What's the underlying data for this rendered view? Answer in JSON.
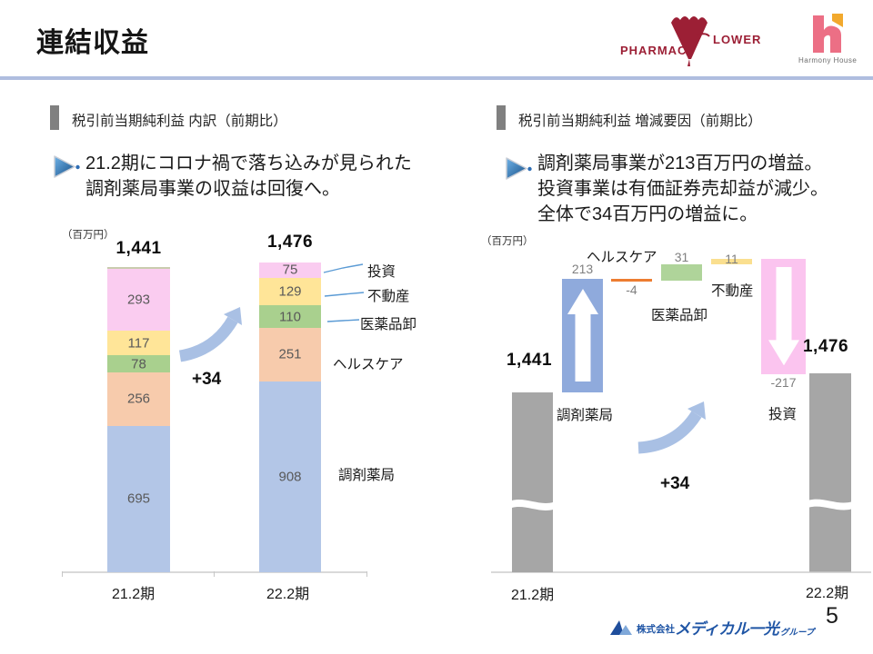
{
  "page": {
    "title": "連結収益",
    "page_number": "5"
  },
  "logos": {
    "pharmacy_flower": {
      "text_left": "PHARMAC",
      "text_right": "LOWER",
      "color": "#9C1F35"
    },
    "harmony_house": {
      "caption": "Harmony House",
      "pink": "#EC6F85",
      "orange": "#F2A92D"
    },
    "footer_company": {
      "prefix": "株式会社",
      "name": "メディカル一光",
      "suffix": "グループ",
      "color": "#1F55A5"
    }
  },
  "left_panel": {
    "header": "税引前当期純利益 内訳（前期比）",
    "bullet_lines": [
      "21.2期にコロナ禍で落ち込みが見られた",
      "調剤薬局事業の収益は回復へ。"
    ],
    "unit": "（百万円）",
    "delta_label": "+34"
  },
  "right_panel": {
    "header": "税引前当期純利益 増減要因（前期比）",
    "bullet_lines": [
      "調剤薬局事業が213百万円の増益。",
      "投資事業は有価証券売却益が減少。",
      "全体で34百万円の増益に。"
    ],
    "unit": "（百万円）",
    "delta_label": "+34"
  },
  "chart_data": [
    {
      "type": "bar",
      "subtype": "stacked-column",
      "title": "税引前当期純利益 内訳（前期比）",
      "unit": "百万円",
      "categories": [
        "21.2期",
        "22.2期"
      ],
      "series": [
        {
          "name": "調剤薬局",
          "values": [
            695,
            908
          ],
          "color": "#B3C6E7"
        },
        {
          "name": "ヘルスケア",
          "values": [
            256,
            251
          ],
          "color": "#F7CBAC"
        },
        {
          "name": "医薬品卸",
          "values": [
            78,
            110
          ],
          "color": "#A9D08E"
        },
        {
          "name": "不動産",
          "values": [
            117,
            129
          ],
          "color": "#FFE598"
        },
        {
          "name": "投資",
          "values": [
            293,
            75
          ],
          "color": "#FACCF0"
        }
      ],
      "totals": [
        1441,
        1476
      ],
      "totals_display": [
        "1,441",
        "1,476"
      ],
      "top_edge_color": "#C9CCAE",
      "delta": "+34",
      "legend_position": "right",
      "grid": false
    },
    {
      "type": "bar",
      "subtype": "waterfall",
      "title": "税引前当期純利益 増減要因（前期比）",
      "unit": "百万円",
      "start": {
        "label": "21.2期",
        "value": 1441,
        "display": "1,441",
        "color": "#A6A6A6"
      },
      "steps": [
        {
          "name": "調剤薬局",
          "value": 213,
          "color": "#8FAADC"
        },
        {
          "name": "ヘルスケア",
          "value": -4,
          "color": "#ED7D31"
        },
        {
          "name": "医薬品卸",
          "value": 31,
          "color": "#AFD49A"
        },
        {
          "name": "不動産",
          "value": 11,
          "color": "#FADF8F"
        },
        {
          "name": "投資",
          "value": -217,
          "color": "#FBC4EF"
        }
      ],
      "end": {
        "label": "22.2期",
        "value": 1476,
        "display": "1,476",
        "color": "#A6A6A6"
      },
      "delta": "+34",
      "axis_break": true,
      "grid": false
    }
  ]
}
